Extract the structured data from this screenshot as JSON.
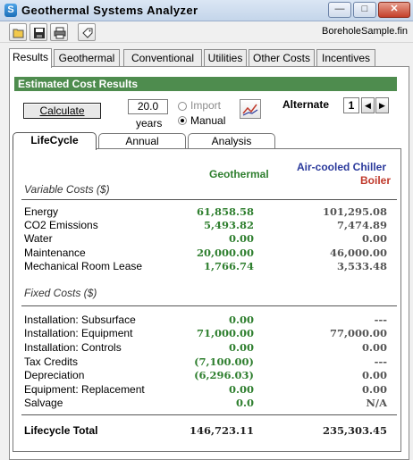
{
  "window": {
    "title": "Geothermal Systems Analyzer",
    "icon_letter": "S",
    "min_glyph": "—",
    "max_glyph": "□",
    "close_glyph": "✕"
  },
  "toolbar": {
    "filename": "BoreholeSample.fin"
  },
  "main_tabs": [
    {
      "label": "Results"
    },
    {
      "label": "Geothermal"
    },
    {
      "label": "Conventional"
    },
    {
      "label": "Utilities"
    },
    {
      "label": "Other Costs"
    },
    {
      "label": "Incentives"
    }
  ],
  "results": {
    "header": "Estimated Cost Results",
    "calculate_label": "Calculate",
    "years_value": "20.0",
    "years_label": "years",
    "import_label": "Import",
    "manual_label": "Manual",
    "alternate_label": "Alternate",
    "alternate_value": "1",
    "prev_glyph": "◀",
    "next_glyph": "▶"
  },
  "inner_tabs": [
    {
      "label": "LifeCycle"
    },
    {
      "label": "Annual"
    },
    {
      "label": "Analysis"
    }
  ],
  "columns": {
    "geo": "Geothermal",
    "alt1": "Air-cooled Chiller",
    "alt2": "Boiler",
    "geo_color": "#2f7f2f",
    "alt1_color": "#2b3a9c",
    "alt2_color": "#c0392b"
  },
  "variable_costs": {
    "title": "Variable Costs ($)",
    "rows": [
      {
        "label": "Energy",
        "geo": "61,858.58",
        "alt": "101,295.08"
      },
      {
        "label": "CO2 Emissions",
        "geo": "5,493.82",
        "alt": "7,474.89"
      },
      {
        "label": "Water",
        "geo": "0.00",
        "alt": "0.00"
      },
      {
        "label": "Maintenance",
        "geo": "20,000.00",
        "alt": "46,000.00"
      },
      {
        "label": "Mechanical Room Lease",
        "geo": "1,766.74",
        "alt": "3,533.48"
      }
    ]
  },
  "fixed_costs": {
    "title": "Fixed Costs ($)",
    "rows": [
      {
        "label": "Installation:  Subsurface",
        "geo": "0.00",
        "alt": "---"
      },
      {
        "label": "Installation:  Equipment",
        "geo": "71,000.00",
        "alt": "77,000.00"
      },
      {
        "label": "Installation:  Controls",
        "geo": "0.00",
        "alt": "0.00"
      },
      {
        "label": "Tax Credits",
        "geo": "(7,100.00)",
        "alt": "---"
      },
      {
        "label": "Depreciation",
        "geo": "(6,296.03)",
        "alt": "0.00"
      },
      {
        "label": "Equipment:  Replacement",
        "geo": "0.00",
        "alt": "0.00"
      },
      {
        "label": "Salvage",
        "geo": "0.0",
        "alt": "N/A"
      }
    ]
  },
  "total": {
    "label": "Lifecycle Total",
    "geo": "146,723.11",
    "alt": "235,303.45"
  }
}
